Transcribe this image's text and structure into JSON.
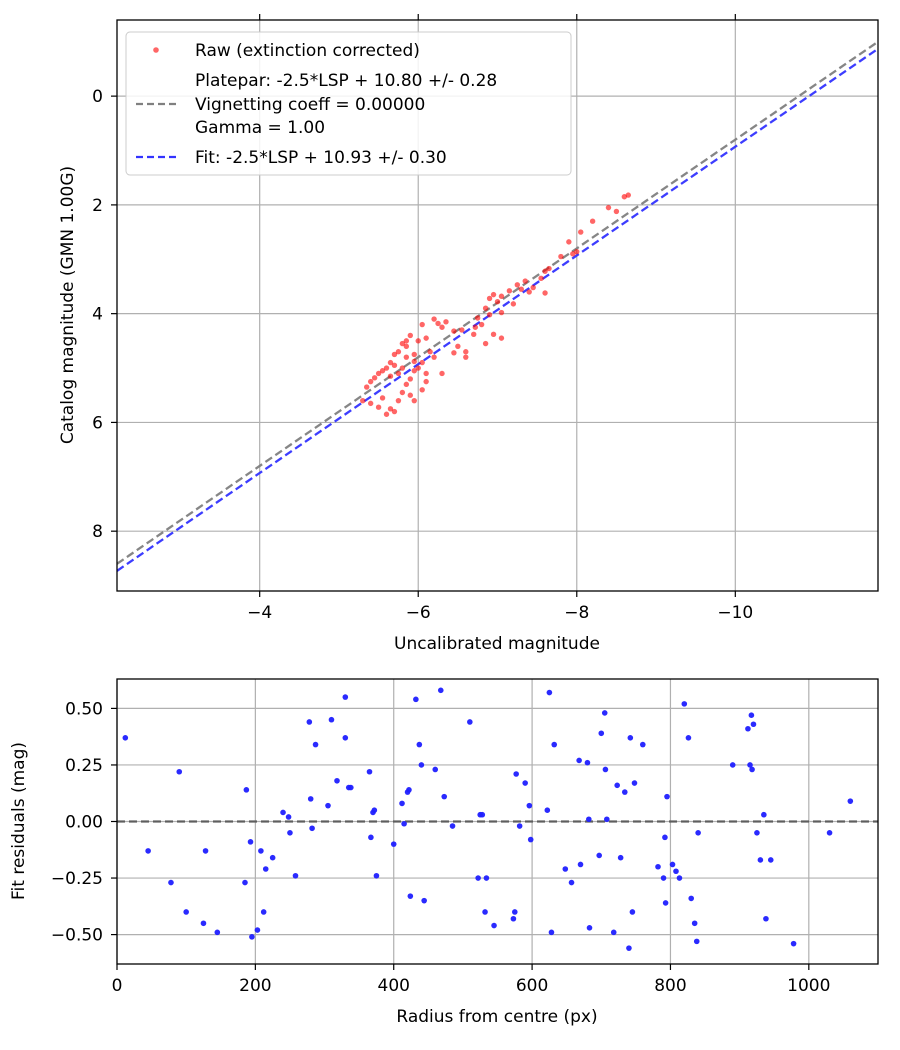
{
  "chart_data": [
    {
      "type": "scatter",
      "xlabel": "Uncalibrated magnitude",
      "ylabel": "Catalog magnitude (GMN 1.00G)",
      "xlim": [
        -2.2,
        -11.8
      ],
      "ylim": [
        9.1,
        -1.4
      ],
      "x_inverted": true,
      "y_inverted": true,
      "grid": true,
      "xticks": [
        -4,
        -6,
        -8,
        -10
      ],
      "xtick_labels": [
        "−4",
        "−6",
        "−8",
        "−10"
      ],
      "yticks": [
        0,
        2,
        4,
        6,
        8
      ],
      "ytick_labels": [
        "0",
        "2",
        "4",
        "6",
        "8"
      ],
      "legend_position": "top-left",
      "legend": [
        {
          "label": "Raw (extinction corrected)",
          "marker": "dot",
          "color": "#ff0000"
        },
        {
          "label_lines": [
            "Platepar: -2.5*LSP + 10.80 +/- 0.28",
            "Vignetting coeff = 0.00000",
            "Gamma = 1.00"
          ],
          "marker": "dashed",
          "color": "#808080"
        },
        {
          "label": "Fit: -2.5*LSP + 10.93 +/- 0.30",
          "marker": "dashed",
          "color": "#3333ff"
        }
      ],
      "lines": [
        {
          "name": "Platepar",
          "color": "#808080",
          "style": "dashed",
          "slope": 1.0,
          "intercept": 10.8
        },
        {
          "name": "Fit",
          "color": "#3333ff",
          "style": "dashed",
          "slope": 1.0,
          "intercept": 10.93
        }
      ],
      "series": [
        {
          "name": "Raw (extinction corrected)",
          "color": "#ff0000",
          "points": [
            [
              -8.65,
              1.82
            ],
            [
              -8.6,
              1.85
            ],
            [
              -8.4,
              2.05
            ],
            [
              -8.5,
              2.12
            ],
            [
              -8.2,
              2.3
            ],
            [
              -8.05,
              2.5
            ],
            [
              -7.9,
              2.68
            ],
            [
              -8.0,
              2.86
            ],
            [
              -7.95,
              2.9
            ],
            [
              -7.8,
              2.95
            ],
            [
              -7.65,
              3.17
            ],
            [
              -7.6,
              3.22
            ],
            [
              -7.55,
              3.35
            ],
            [
              -7.35,
              3.4
            ],
            [
              -7.45,
              3.52
            ],
            [
              -7.3,
              3.55
            ],
            [
              -7.25,
              3.47
            ],
            [
              -7.4,
              3.6
            ],
            [
              -7.6,
              3.62
            ],
            [
              -7.15,
              3.58
            ],
            [
              -7.05,
              3.68
            ],
            [
              -6.95,
              3.65
            ],
            [
              -7.0,
              3.78
            ],
            [
              -6.9,
              3.72
            ],
            [
              -7.2,
              3.82
            ],
            [
              -6.85,
              3.9
            ],
            [
              -7.05,
              3.98
            ],
            [
              -6.9,
              4.02
            ],
            [
              -6.75,
              4.08
            ],
            [
              -6.8,
              4.2
            ],
            [
              -6.72,
              4.25
            ],
            [
              -6.95,
              4.38
            ],
            [
              -7.05,
              4.45
            ],
            [
              -6.7,
              4.38
            ],
            [
              -6.85,
              4.55
            ],
            [
              -6.55,
              4.3
            ],
            [
              -6.45,
              4.32
            ],
            [
              -6.35,
              4.15
            ],
            [
              -6.25,
              4.18
            ],
            [
              -6.2,
              4.1
            ],
            [
              -6.3,
              4.25
            ],
            [
              -6.5,
              4.6
            ],
            [
              -6.6,
              4.7
            ],
            [
              -6.45,
              4.72
            ],
            [
              -6.6,
              4.8
            ],
            [
              -6.3,
              5.1
            ],
            [
              -6.2,
              4.8
            ],
            [
              -6.15,
              4.7
            ],
            [
              -6.05,
              4.9
            ],
            [
              -5.95,
              4.88
            ],
            [
              -5.85,
              4.6
            ],
            [
              -5.8,
              4.55
            ],
            [
              -5.75,
              4.7
            ],
            [
              -5.7,
              4.75
            ],
            [
              -5.65,
              4.9
            ],
            [
              -5.6,
              5.0
            ],
            [
              -5.55,
              5.05
            ],
            [
              -5.5,
              5.1
            ],
            [
              -5.45,
              5.18
            ],
            [
              -5.4,
              5.25
            ],
            [
              -5.35,
              5.35
            ],
            [
              -5.3,
              5.6
            ],
            [
              -5.4,
              5.65
            ],
            [
              -5.5,
              5.72
            ],
            [
              -5.6,
              5.85
            ],
            [
              -5.65,
              5.75
            ],
            [
              -5.7,
              5.8
            ],
            [
              -5.55,
              5.55
            ],
            [
              -5.75,
              5.6
            ],
            [
              -5.8,
              5.45
            ],
            [
              -5.85,
              5.3
            ],
            [
              -5.9,
              5.2
            ],
            [
              -5.95,
              5.05
            ],
            [
              -6.0,
              5.0
            ],
            [
              -6.1,
              5.1
            ],
            [
              -6.1,
              5.25
            ],
            [
              -6.05,
              5.4
            ],
            [
              -5.9,
              5.5
            ],
            [
              -5.95,
              5.6
            ],
            [
              -6.0,
              4.5
            ],
            [
              -5.9,
              4.4
            ],
            [
              -5.85,
              4.5
            ],
            [
              -6.05,
              4.2
            ],
            [
              -6.1,
              4.45
            ],
            [
              -5.7,
              4.95
            ],
            [
              -5.65,
              5.15
            ],
            [
              -5.8,
              5.0
            ],
            [
              -5.75,
              5.1
            ],
            [
              -5.85,
              4.8
            ],
            [
              -5.95,
              4.75
            ]
          ]
        }
      ]
    },
    {
      "type": "scatter",
      "xlabel": "Radius from centre (px)",
      "ylabel": "Fit residuals (mag)",
      "xlim": [
        0,
        1100
      ],
      "ylim": [
        -0.63,
        0.63
      ],
      "grid": true,
      "xticks": [
        0,
        200,
        400,
        600,
        800,
        1000
      ],
      "xtick_labels": [
        "0",
        "200",
        "400",
        "600",
        "800",
        "1000"
      ],
      "yticks": [
        0.5,
        0.25,
        0.0,
        -0.25,
        -0.5
      ],
      "ytick_labels": [
        "0.50",
        "0.25",
        "0.00",
        "−0.25",
        "−0.50"
      ],
      "reference_line": {
        "y": 0,
        "color": "#555555",
        "style": "dashed"
      },
      "series": [
        {
          "name": "Fit residuals",
          "color": "#1f1fff",
          "points": [
            [
              12,
              0.37
            ],
            [
              45,
              -0.13
            ],
            [
              78,
              -0.27
            ],
            [
              90,
              0.22
            ],
            [
              100,
              -0.4
            ],
            [
              125,
              -0.45
            ],
            [
              128,
              -0.13
            ],
            [
              145,
              -0.49
            ],
            [
              185,
              -0.27
            ],
            [
              187,
              0.14
            ],
            [
              193,
              -0.09
            ],
            [
              195,
              -0.51
            ],
            [
              203,
              -0.48
            ],
            [
              208,
              -0.13
            ],
            [
              212,
              -0.4
            ],
            [
              215,
              -0.21
            ],
            [
              225,
              -0.16
            ],
            [
              240,
              0.04
            ],
            [
              248,
              0.02
            ],
            [
              250,
              -0.05
            ],
            [
              258,
              -0.24
            ],
            [
              278,
              0.44
            ],
            [
              280,
              0.1
            ],
            [
              282,
              -0.03
            ],
            [
              287,
              0.34
            ],
            [
              305,
              0.07
            ],
            [
              310,
              0.45
            ],
            [
              318,
              0.18
            ],
            [
              330,
              0.37
            ],
            [
              330,
              0.55
            ],
            [
              335,
              0.15
            ],
            [
              338,
              0.15
            ],
            [
              365,
              0.22
            ],
            [
              367,
              -0.07
            ],
            [
              370,
              0.04
            ],
            [
              372,
              0.05
            ],
            [
              375,
              -0.24
            ],
            [
              400,
              -0.1
            ],
            [
              412,
              0.08
            ],
            [
              415,
              -0.01
            ],
            [
              420,
              0.13
            ],
            [
              422,
              0.14
            ],
            [
              424,
              -0.33
            ],
            [
              432,
              0.54
            ],
            [
              437,
              0.34
            ],
            [
              440,
              0.25
            ],
            [
              444,
              -0.35
            ],
            [
              460,
              0.23
            ],
            [
              468,
              0.58
            ],
            [
              473,
              0.11
            ],
            [
              485,
              -0.02
            ],
            [
              510,
              0.44
            ],
            [
              522,
              -0.25
            ],
            [
              525,
              0.03
            ],
            [
              528,
              0.03
            ],
            [
              532,
              -0.4
            ],
            [
              534,
              -0.25
            ],
            [
              545,
              -0.46
            ],
            [
              573,
              -0.43
            ],
            [
              575,
              -0.4
            ],
            [
              577,
              0.21
            ],
            [
              582,
              -0.02
            ],
            [
              590,
              0.17
            ],
            [
              596,
              0.07
            ],
            [
              598,
              -0.08
            ],
            [
              622,
              0.05
            ],
            [
              625,
              0.57
            ],
            [
              628,
              -0.49
            ],
            [
              632,
              0.34
            ],
            [
              648,
              -0.21
            ],
            [
              657,
              -0.27
            ],
            [
              668,
              0.27
            ],
            [
              670,
              -0.19
            ],
            [
              680,
              0.26
            ],
            [
              682,
              0.01
            ],
            [
              683,
              -0.47
            ],
            [
              697,
              -0.15
            ],
            [
              700,
              0.39
            ],
            [
              705,
              0.48
            ],
            [
              706,
              0.23
            ],
            [
              708,
              0.01
            ],
            [
              718,
              -0.49
            ],
            [
              723,
              0.16
            ],
            [
              728,
              -0.16
            ],
            [
              734,
              0.13
            ],
            [
              740,
              -0.56
            ],
            [
              742,
              0.37
            ],
            [
              745,
              -0.4
            ],
            [
              748,
              0.17
            ],
            [
              760,
              0.34
            ],
            [
              782,
              -0.2
            ],
            [
              790,
              -0.25
            ],
            [
              792,
              -0.07
            ],
            [
              793,
              -0.36
            ],
            [
              795,
              0.11
            ],
            [
              803,
              -0.19
            ],
            [
              808,
              -0.22
            ],
            [
              813,
              -0.25
            ],
            [
              820,
              0.52
            ],
            [
              826,
              0.37
            ],
            [
              830,
              -0.34
            ],
            [
              835,
              -0.45
            ],
            [
              838,
              -0.53
            ],
            [
              840,
              -0.05
            ],
            [
              890,
              0.25
            ],
            [
              912,
              0.41
            ],
            [
              915,
              0.25
            ],
            [
              917,
              0.47
            ],
            [
              918,
              0.23
            ],
            [
              920,
              0.43
            ],
            [
              925,
              -0.05
            ],
            [
              930,
              -0.17
            ],
            [
              935,
              0.03
            ],
            [
              938,
              -0.43
            ],
            [
              945,
              -0.17
            ],
            [
              978,
              -0.54
            ],
            [
              1030,
              -0.05
            ],
            [
              1060,
              0.09
            ]
          ]
        }
      ]
    }
  ]
}
